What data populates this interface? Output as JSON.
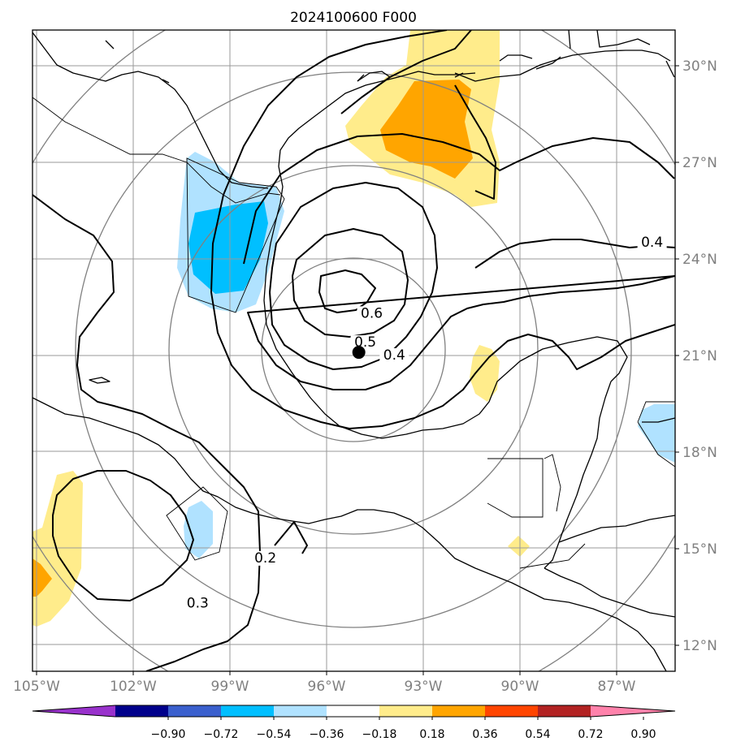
{
  "title": "2024100600 F000",
  "colors": {
    "frame": "#000000",
    "grid": "#9a9a9a",
    "range_ring": "#808080",
    "coast": "#000000",
    "contour": "#000000",
    "tick_text": "#808080",
    "storm_marker": "#000000"
  },
  "map": {
    "lon_range": [
      -105,
      -85
    ],
    "lat_range": [
      11,
      31
    ],
    "lon_ticks": [
      {
        "value": -105,
        "label": "105°W"
      },
      {
        "value": -102,
        "label": "102°W"
      },
      {
        "value": -99,
        "label": "99°W"
      },
      {
        "value": -96,
        "label": "96°W"
      },
      {
        "value": -93,
        "label": "93°W"
      },
      {
        "value": -90,
        "label": "90°W"
      },
      {
        "value": -87,
        "label": "87°W"
      }
    ],
    "lat_ticks": [
      {
        "value": 30,
        "label": "30°N"
      },
      {
        "value": 27,
        "label": "27°N"
      },
      {
        "value": 24,
        "label": "24°N"
      },
      {
        "value": 21,
        "label": "21°N"
      },
      {
        "value": 18,
        "label": "18°N"
      },
      {
        "value": 15,
        "label": "15°N"
      },
      {
        "value": 12,
        "label": "12°N"
      }
    ],
    "storm_center": {
      "lon": -95.0,
      "lat": 21.1
    },
    "contour_labels": [
      {
        "text": "0.6",
        "lon": -94.6,
        "lat": 22.2
      },
      {
        "text": "0.5",
        "lon": -94.8,
        "lat": 21.3
      },
      {
        "text": "0.4",
        "lon": -93.9,
        "lat": 20.9
      },
      {
        "text": "0.4",
        "lon": -85.9,
        "lat": 24.4
      },
      {
        "text": "0.3",
        "lon": -100.0,
        "lat": 13.2
      },
      {
        "text": "0.2",
        "lon": -97.9,
        "lat": 14.6
      }
    ]
  },
  "colorbar": {
    "ticks": [
      "−0.90",
      "−0.72",
      "−0.54",
      "−0.36",
      "−0.18",
      "0.18",
      "0.36",
      "0.54",
      "0.72",
      "0.90"
    ],
    "colors": [
      "#9932cc",
      "#00008b",
      "#3a5fcd",
      "#00bfff",
      "#b0e2ff",
      "#ffffff",
      "#ffec8b",
      "#ffa500",
      "#ff4500",
      "#b22222",
      "#ff82ab"
    ]
  }
}
